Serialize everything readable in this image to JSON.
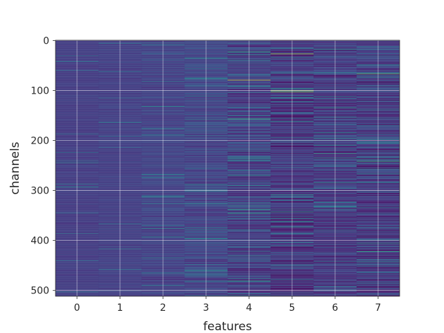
{
  "chart_data": {
    "type": "heatmap",
    "title": "",
    "xlabel": "features",
    "ylabel": "channels",
    "x_categories": [
      "0",
      "1",
      "2",
      "3",
      "4",
      "5",
      "6",
      "7"
    ],
    "y_ticks": [
      0,
      100,
      200,
      300,
      400,
      500
    ],
    "y_tick_labels": [
      "0",
      "100",
      "200",
      "300",
      "400",
      "500"
    ],
    "ylim": [
      511.5,
      -0.5
    ],
    "grid": true,
    "colormap": "viridis",
    "n_channels": 512,
    "n_features": 8,
    "column_value_profile": [
      {
        "feature": "0",
        "mean": 0.22,
        "spread": 0.03
      },
      {
        "feature": "1",
        "mean": 0.23,
        "spread": 0.04
      },
      {
        "feature": "2",
        "mean": 0.24,
        "spread": 0.06
      },
      {
        "feature": "3",
        "mean": 0.25,
        "spread": 0.09
      },
      {
        "feature": "4",
        "mean": 0.22,
        "spread": 0.14
      },
      {
        "feature": "5",
        "mean": 0.18,
        "spread": 0.15
      },
      {
        "feature": "6",
        "mean": 0.2,
        "spread": 0.14
      },
      {
        "feature": "7",
        "mean": 0.2,
        "spread": 0.16
      }
    ],
    "notable_bright_cells": [
      {
        "feature": "4",
        "channel": 79,
        "value": 0.95
      },
      {
        "feature": "4",
        "channel": 157,
        "value": 0.75
      },
      {
        "feature": "5",
        "channel": 27,
        "value": 0.9
      },
      {
        "feature": "5",
        "channel": 100,
        "value": 0.95
      },
      {
        "feature": "5",
        "channel": 103,
        "value": 0.85
      },
      {
        "feature": "7",
        "channel": 67,
        "value": 0.8
      },
      {
        "feature": "7",
        "channel": 242,
        "value": 0.75
      },
      {
        "feature": "6",
        "channel": 226,
        "value": 0.7
      },
      {
        "feature": "6",
        "channel": 285,
        "value": 0.65
      },
      {
        "feature": "4",
        "channel": 338,
        "value": 0.7
      },
      {
        "feature": "3",
        "channel": 77,
        "value": 0.6
      }
    ]
  }
}
